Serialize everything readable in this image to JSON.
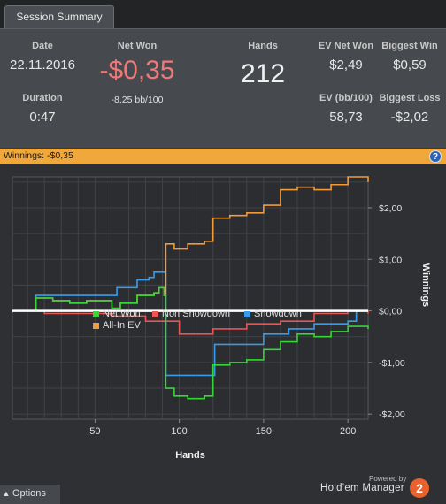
{
  "tab": {
    "label": "Session Summary"
  },
  "summary": {
    "date_label": "Date",
    "date": "22.11.2016",
    "duration_label": "Duration",
    "duration": "0:47",
    "net_won_label": "Net Won",
    "net_won": "-$0,35",
    "bb100": "-8,25 bb/100",
    "hands_label": "Hands",
    "hands": "212",
    "ev_net_won_label": "EV Net Won",
    "ev_net_won": "$2,49",
    "biggest_win_label": "Biggest Win",
    "biggest_win": "$0,59",
    "ev_bb100_label": "EV (bb/100)",
    "ev_bb100": "58,73",
    "biggest_loss_label": "Biggest Loss",
    "biggest_loss": "-$2,02"
  },
  "winnings_bar": {
    "text": "Winnings: -$0,35",
    "help_icon": "question-icon"
  },
  "chart_data": {
    "type": "line",
    "xlabel": "Hands",
    "ylabel": "Winnings",
    "xlim": [
      1,
      212
    ],
    "ylim": [
      -2.1,
      2.6
    ],
    "x_ticks": [
      50,
      100,
      150,
      200
    ],
    "y_ticks": [
      -2,
      -1,
      0,
      1,
      2
    ],
    "y_tick_labels": [
      "-$2,00",
      "-$1,00",
      "$0,00",
      "$1,00",
      "$2,00"
    ],
    "grid": true,
    "series": [
      {
        "name": "Net Won",
        "color": "#35d635",
        "points": [
          [
            1,
            0
          ],
          [
            15,
            0.25
          ],
          [
            25,
            0.2
          ],
          [
            35,
            0.15
          ],
          [
            45,
            0.2
          ],
          [
            60,
            0.05
          ],
          [
            65,
            0.15
          ],
          [
            75,
            0.3
          ],
          [
            85,
            0.35
          ],
          [
            88,
            0.45
          ],
          [
            91,
            0.3
          ],
          [
            92,
            -1.5
          ],
          [
            97,
            -1.65
          ],
          [
            105,
            -1.7
          ],
          [
            115,
            -1.65
          ],
          [
            120,
            -1.05
          ],
          [
            130,
            -1.0
          ],
          [
            140,
            -0.95
          ],
          [
            150,
            -0.75
          ],
          [
            160,
            -0.6
          ],
          [
            170,
            -0.45
          ],
          [
            180,
            -0.5
          ],
          [
            190,
            -0.4
          ],
          [
            200,
            -0.3
          ],
          [
            205,
            -0.3
          ],
          [
            212,
            -0.35
          ]
        ]
      },
      {
        "name": "Non Showdown",
        "color": "#e85555",
        "points": [
          [
            1,
            0
          ],
          [
            20,
            -0.05
          ],
          [
            40,
            -0.05
          ],
          [
            60,
            -0.1
          ],
          [
            80,
            -0.2
          ],
          [
            100,
            -0.45
          ],
          [
            120,
            -0.35
          ],
          [
            140,
            -0.25
          ],
          [
            160,
            -0.2
          ],
          [
            180,
            -0.05
          ],
          [
            200,
            0.0
          ],
          [
            212,
            -0.05
          ]
        ]
      },
      {
        "name": "Showdown",
        "color": "#3a9bea",
        "points": [
          [
            1,
            0
          ],
          [
            15,
            0.3
          ],
          [
            60,
            0.3
          ],
          [
            63,
            0.45
          ],
          [
            75,
            0.6
          ],
          [
            82,
            0.65
          ],
          [
            85,
            0.75
          ],
          [
            91,
            0.75
          ],
          [
            92,
            -1.25
          ],
          [
            120,
            -1.25
          ],
          [
            121,
            -0.65
          ],
          [
            140,
            -0.65
          ],
          [
            150,
            -0.45
          ],
          [
            165,
            -0.35
          ],
          [
            175,
            -0.35
          ],
          [
            180,
            -0.25
          ],
          [
            200,
            -0.2
          ],
          [
            205,
            0.0
          ],
          [
            212,
            0.0
          ]
        ]
      },
      {
        "name": "All-In EV",
        "color": "#f39a3a",
        "points": [
          [
            1,
            0
          ],
          [
            15,
            0.25
          ],
          [
            25,
            0.2
          ],
          [
            35,
            0.15
          ],
          [
            45,
            0.2
          ],
          [
            60,
            0.05
          ],
          [
            65,
            0.15
          ],
          [
            75,
            0.3
          ],
          [
            85,
            0.35
          ],
          [
            88,
            0.45
          ],
          [
            91,
            0.3
          ],
          [
            92,
            1.3
          ],
          [
            97,
            1.2
          ],
          [
            105,
            1.3
          ],
          [
            115,
            1.35
          ],
          [
            120,
            1.8
          ],
          [
            130,
            1.85
          ],
          [
            140,
            1.9
          ],
          [
            150,
            2.05
          ],
          [
            160,
            2.35
          ],
          [
            170,
            2.4
          ],
          [
            180,
            2.35
          ],
          [
            190,
            2.45
          ],
          [
            200,
            2.6
          ],
          [
            205,
            2.6
          ],
          [
            212,
            2.5
          ]
        ]
      }
    ],
    "reference_line": {
      "y": 0,
      "color": "#ffffff"
    }
  },
  "legend": [
    {
      "label": "Net Won",
      "color": "#35d635"
    },
    {
      "label": "Non Showdown",
      "color": "#e85555"
    },
    {
      "label": "Showdown",
      "color": "#3a9bea"
    },
    {
      "label": "All-In EV",
      "color": "#f39a3a"
    }
  ],
  "footer": {
    "options_label": "Options",
    "options_icon": "chevron-up-icon",
    "powered_by": "Powered by",
    "brand": "Hold'em Manager",
    "brand_badge": "2"
  }
}
